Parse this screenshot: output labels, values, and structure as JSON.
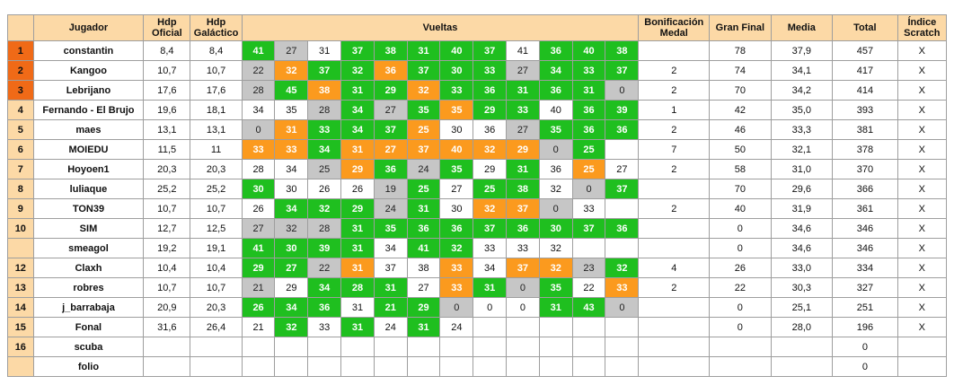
{
  "headers": {
    "jugador": "Jugador",
    "hdp_oficial": [
      "Hdp",
      "Oficial"
    ],
    "hdp_galactico": [
      "Hdp",
      "Galáctico"
    ],
    "vueltas": "Vueltas",
    "bonificacion": [
      "Bonificación",
      "Medal"
    ],
    "gran_final": "Gran Final",
    "media": "Media",
    "total": "Total",
    "indice": [
      "Índice",
      "Scratch"
    ]
  },
  "colors": {
    "header_bg": "#fcd9a6",
    "podium_bg": "#f06a17",
    "green": "#1fbf1f",
    "orange": "#fb9a1e",
    "gray": "#c6c6c6"
  },
  "rows": [
    {
      "pos": "1",
      "name": "constantin",
      "hdp_oficial": "8,4",
      "hdp_galactico": "8,4",
      "scores": [
        [
          "41",
          "g"
        ],
        [
          "27",
          "s"
        ],
        [
          "31",
          "w"
        ],
        [
          "37",
          "g"
        ],
        [
          "38",
          "g"
        ],
        [
          "31",
          "g"
        ],
        [
          "40",
          "g"
        ],
        [
          "37",
          "g"
        ],
        [
          "41",
          "w"
        ],
        [
          "36",
          "g"
        ],
        [
          "40",
          "g"
        ],
        [
          "38",
          "g"
        ]
      ],
      "bonificacion": "",
      "gran_final": "78",
      "media": "37,9",
      "total": "457",
      "indice": "X"
    },
    {
      "pos": "2",
      "name": "Kangoo",
      "hdp_oficial": "10,7",
      "hdp_galactico": "10,7",
      "scores": [
        [
          "22",
          "s"
        ],
        [
          "32",
          "o"
        ],
        [
          "37",
          "g"
        ],
        [
          "32",
          "g"
        ],
        [
          "36",
          "o"
        ],
        [
          "37",
          "g"
        ],
        [
          "30",
          "g"
        ],
        [
          "33",
          "g"
        ],
        [
          "27",
          "s"
        ],
        [
          "34",
          "g"
        ],
        [
          "33",
          "g"
        ],
        [
          "37",
          "g"
        ]
      ],
      "bonificacion": "2",
      "gran_final": "74",
      "media": "34,1",
      "total": "417",
      "indice": "X"
    },
    {
      "pos": "3",
      "name": "Lebrijano",
      "hdp_oficial": "17,6",
      "hdp_galactico": "17,6",
      "scores": [
        [
          "28",
          "s"
        ],
        [
          "45",
          "g"
        ],
        [
          "38",
          "o"
        ],
        [
          "31",
          "g"
        ],
        [
          "29",
          "g"
        ],
        [
          "32",
          "o"
        ],
        [
          "33",
          "g"
        ],
        [
          "36",
          "g"
        ],
        [
          "31",
          "g"
        ],
        [
          "36",
          "g"
        ],
        [
          "31",
          "g"
        ],
        [
          "0",
          "s"
        ]
      ],
      "bonificacion": "2",
      "gran_final": "70",
      "media": "34,2",
      "total": "414",
      "indice": "X"
    },
    {
      "pos": "4",
      "name": "Fernando - El Brujo",
      "hdp_oficial": "19,6",
      "hdp_galactico": "18,1",
      "scores": [
        [
          "34",
          "w"
        ],
        [
          "35",
          "w"
        ],
        [
          "28",
          "s"
        ],
        [
          "34",
          "g"
        ],
        [
          "27",
          "s"
        ],
        [
          "35",
          "g"
        ],
        [
          "35",
          "o"
        ],
        [
          "29",
          "g"
        ],
        [
          "33",
          "g"
        ],
        [
          "40",
          "w"
        ],
        [
          "36",
          "g"
        ],
        [
          "39",
          "g"
        ]
      ],
      "bonificacion": "1",
      "gran_final": "42",
      "media": "35,0",
      "total": "393",
      "indice": "X"
    },
    {
      "pos": "5",
      "name": "maes",
      "hdp_oficial": "13,1",
      "hdp_galactico": "13,1",
      "scores": [
        [
          "0",
          "s"
        ],
        [
          "31",
          "o"
        ],
        [
          "33",
          "g"
        ],
        [
          "34",
          "g"
        ],
        [
          "37",
          "g"
        ],
        [
          "25",
          "o"
        ],
        [
          "30",
          "w"
        ],
        [
          "36",
          "w"
        ],
        [
          "27",
          "s"
        ],
        [
          "35",
          "g"
        ],
        [
          "36",
          "g"
        ],
        [
          "36",
          "g"
        ]
      ],
      "bonificacion": "2",
      "gran_final": "46",
      "media": "33,3",
      "total": "381",
      "indice": "X"
    },
    {
      "pos": "6",
      "name": "MOIEDU",
      "hdp_oficial": "11,5",
      "hdp_galactico": "11",
      "scores": [
        [
          "33",
          "o"
        ],
        [
          "33",
          "o"
        ],
        [
          "34",
          "g"
        ],
        [
          "31",
          "o"
        ],
        [
          "27",
          "o"
        ],
        [
          "37",
          "o"
        ],
        [
          "40",
          "o"
        ],
        [
          "32",
          "o"
        ],
        [
          "29",
          "o"
        ],
        [
          "0",
          "s"
        ],
        [
          "25",
          "g"
        ],
        [
          "",
          "w"
        ]
      ],
      "bonificacion": "7",
      "gran_final": "50",
      "media": "32,1",
      "total": "378",
      "indice": "X"
    },
    {
      "pos": "7",
      "name": "Hoyoen1",
      "hdp_oficial": "20,3",
      "hdp_galactico": "20,3",
      "scores": [
        [
          "28",
          "w"
        ],
        [
          "34",
          "w"
        ],
        [
          "25",
          "s"
        ],
        [
          "29",
          "o"
        ],
        [
          "36",
          "g"
        ],
        [
          "24",
          "s"
        ],
        [
          "35",
          "g"
        ],
        [
          "29",
          "w"
        ],
        [
          "31",
          "g"
        ],
        [
          "36",
          "w"
        ],
        [
          "25",
          "o"
        ],
        [
          "27",
          "w"
        ]
      ],
      "bonificacion": "2",
      "gran_final": "58",
      "media": "31,0",
      "total": "370",
      "indice": "X"
    },
    {
      "pos": "8",
      "name": "luliaque",
      "hdp_oficial": "25,2",
      "hdp_galactico": "25,2",
      "scores": [
        [
          "30",
          "g"
        ],
        [
          "30",
          "w"
        ],
        [
          "26",
          "w"
        ],
        [
          "26",
          "w"
        ],
        [
          "19",
          "s"
        ],
        [
          "25",
          "g"
        ],
        [
          "27",
          "w"
        ],
        [
          "25",
          "g"
        ],
        [
          "38",
          "g"
        ],
        [
          "32",
          "w"
        ],
        [
          "0",
          "s"
        ],
        [
          "37",
          "g"
        ]
      ],
      "bonificacion": "",
      "gran_final": "70",
      "media": "29,6",
      "total": "366",
      "indice": "X"
    },
    {
      "pos": "9",
      "name": "TON39",
      "hdp_oficial": "10,7",
      "hdp_galactico": "10,7",
      "scores": [
        [
          "26",
          "w"
        ],
        [
          "34",
          "g"
        ],
        [
          "32",
          "g"
        ],
        [
          "29",
          "g"
        ],
        [
          "24",
          "s"
        ],
        [
          "31",
          "g"
        ],
        [
          "30",
          "w"
        ],
        [
          "32",
          "o"
        ],
        [
          "37",
          "o"
        ],
        [
          "0",
          "s"
        ],
        [
          "33",
          "w"
        ],
        [
          "",
          "w"
        ]
      ],
      "bonificacion": "2",
      "gran_final": "40",
      "media": "31,9",
      "total": "361",
      "indice": "X"
    },
    {
      "pos": "10",
      "name": "SIM",
      "hdp_oficial": "12,7",
      "hdp_galactico": "12,5",
      "scores": [
        [
          "27",
          "s"
        ],
        [
          "32",
          "s"
        ],
        [
          "28",
          "s"
        ],
        [
          "31",
          "g"
        ],
        [
          "35",
          "g"
        ],
        [
          "36",
          "g"
        ],
        [
          "36",
          "g"
        ],
        [
          "37",
          "g"
        ],
        [
          "36",
          "g"
        ],
        [
          "30",
          "g"
        ],
        [
          "37",
          "g"
        ],
        [
          "36",
          "g"
        ]
      ],
      "bonificacion": "",
      "gran_final": "0",
      "media": "34,6",
      "total": "346",
      "indice": "X"
    },
    {
      "pos": "",
      "name": "smeagol",
      "hdp_oficial": "19,2",
      "hdp_galactico": "19,1",
      "scores": [
        [
          "41",
          "g"
        ],
        [
          "30",
          "g"
        ],
        [
          "39",
          "g"
        ],
        [
          "31",
          "g"
        ],
        [
          "34",
          "w"
        ],
        [
          "41",
          "g"
        ],
        [
          "32",
          "g"
        ],
        [
          "33",
          "w"
        ],
        [
          "33",
          "w"
        ],
        [
          "32",
          "w"
        ],
        [
          "",
          "w"
        ],
        [
          "",
          "w"
        ]
      ],
      "bonificacion": "",
      "gran_final": "0",
      "media": "34,6",
      "total": "346",
      "indice": "X"
    },
    {
      "pos": "12",
      "name": "Claxh",
      "hdp_oficial": "10,4",
      "hdp_galactico": "10,4",
      "scores": [
        [
          "29",
          "g"
        ],
        [
          "27",
          "g"
        ],
        [
          "22",
          "s"
        ],
        [
          "31",
          "o"
        ],
        [
          "37",
          "w"
        ],
        [
          "38",
          "w"
        ],
        [
          "33",
          "o"
        ],
        [
          "34",
          "w"
        ],
        [
          "37",
          "o"
        ],
        [
          "32",
          "o"
        ],
        [
          "23",
          "s"
        ],
        [
          "32",
          "g"
        ]
      ],
      "bonificacion": "4",
      "gran_final": "26",
      "media": "33,0",
      "total": "334",
      "indice": "X"
    },
    {
      "pos": "13",
      "name": "robres",
      "hdp_oficial": "10,7",
      "hdp_galactico": "10,7",
      "scores": [
        [
          "21",
          "s"
        ],
        [
          "29",
          "w"
        ],
        [
          "34",
          "g"
        ],
        [
          "28",
          "g"
        ],
        [
          "31",
          "g"
        ],
        [
          "27",
          "w"
        ],
        [
          "33",
          "o"
        ],
        [
          "31",
          "g"
        ],
        [
          "0",
          "s"
        ],
        [
          "35",
          "g"
        ],
        [
          "22",
          "w"
        ],
        [
          "33",
          "o"
        ]
      ],
      "bonificacion": "2",
      "gran_final": "22",
      "media": "30,3",
      "total": "327",
      "indice": "X"
    },
    {
      "pos": "14",
      "name": "j_barrabaja",
      "hdp_oficial": "20,9",
      "hdp_galactico": "20,3",
      "scores": [
        [
          "26",
          "g"
        ],
        [
          "34",
          "g"
        ],
        [
          "36",
          "g"
        ],
        [
          "31",
          "w"
        ],
        [
          "21",
          "g"
        ],
        [
          "29",
          "g"
        ],
        [
          "0",
          "s"
        ],
        [
          "0",
          "w"
        ],
        [
          "0",
          "w"
        ],
        [
          "31",
          "g"
        ],
        [
          "43",
          "g"
        ],
        [
          "0",
          "s"
        ]
      ],
      "bonificacion": "",
      "gran_final": "0",
      "media": "25,1",
      "total": "251",
      "indice": "X"
    },
    {
      "pos": "15",
      "name": "Fonal",
      "hdp_oficial": "31,6",
      "hdp_galactico": "26,4",
      "scores": [
        [
          "21",
          "w"
        ],
        [
          "32",
          "g"
        ],
        [
          "33",
          "w"
        ],
        [
          "31",
          "g"
        ],
        [
          "24",
          "w"
        ],
        [
          "31",
          "g"
        ],
        [
          "24",
          "w"
        ],
        [
          "",
          "w"
        ],
        [
          "",
          "w"
        ],
        [
          "",
          "w"
        ],
        [
          "",
          "w"
        ],
        [
          "",
          "w"
        ]
      ],
      "bonificacion": "",
      "gran_final": "0",
      "media": "28,0",
      "total": "196",
      "indice": "X"
    },
    {
      "pos": "16",
      "name": "scuba",
      "hdp_oficial": "",
      "hdp_galactico": "",
      "scores": [
        [
          "",
          "w"
        ],
        [
          "",
          "w"
        ],
        [
          "",
          "w"
        ],
        [
          "",
          "w"
        ],
        [
          "",
          "w"
        ],
        [
          "",
          "w"
        ],
        [
          "",
          "w"
        ],
        [
          "",
          "w"
        ],
        [
          "",
          "w"
        ],
        [
          "",
          "w"
        ],
        [
          "",
          "w"
        ],
        [
          "",
          "w"
        ]
      ],
      "bonificacion": "",
      "gran_final": "",
      "media": "",
      "total": "0",
      "indice": ""
    },
    {
      "pos": "",
      "name": "folio",
      "hdp_oficial": "",
      "hdp_galactico": "",
      "scores": [
        [
          "",
          "w"
        ],
        [
          "",
          "w"
        ],
        [
          "",
          "w"
        ],
        [
          "",
          "w"
        ],
        [
          "",
          "w"
        ],
        [
          "",
          "w"
        ],
        [
          "",
          "w"
        ],
        [
          "",
          "w"
        ],
        [
          "",
          "w"
        ],
        [
          "",
          "w"
        ],
        [
          "",
          "w"
        ],
        [
          "",
          "w"
        ]
      ],
      "bonificacion": "",
      "gran_final": "",
      "media": "",
      "total": "0",
      "indice": ""
    }
  ]
}
